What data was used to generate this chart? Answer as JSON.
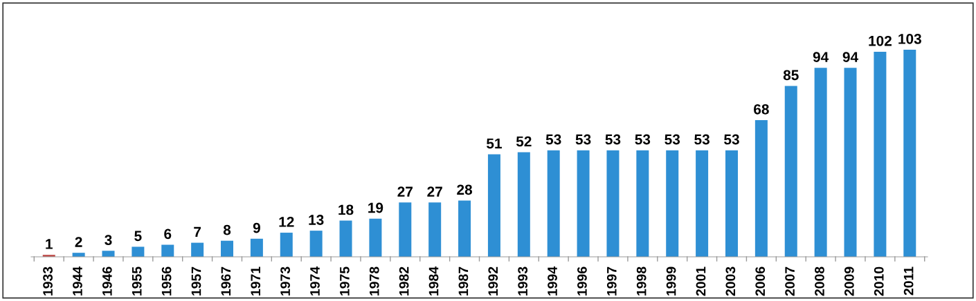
{
  "chart_data": {
    "type": "bar",
    "categories": [
      "1933",
      "1944",
      "1946",
      "1955",
      "1956",
      "1957",
      "1967",
      "1971",
      "1973",
      "1974",
      "1975",
      "1978",
      "1982",
      "1984",
      "1987",
      "1992",
      "1993",
      "1994",
      "1996",
      "1997",
      "1998",
      "1999",
      "2001",
      "2003",
      "2006",
      "2007",
      "2008",
      "2009",
      "2010",
      "2011"
    ],
    "values": [
      1,
      2,
      3,
      5,
      6,
      7,
      8,
      9,
      12,
      13,
      18,
      19,
      27,
      27,
      28,
      51,
      52,
      53,
      53,
      53,
      53,
      53,
      53,
      53,
      68,
      85,
      94,
      94,
      102,
      103
    ],
    "colors": [
      "#c0504d",
      "#2e8fd4",
      "#2e8fd4",
      "#2e8fd4",
      "#2e8fd4",
      "#2e8fd4",
      "#2e8fd4",
      "#2e8fd4",
      "#2e8fd4",
      "#2e8fd4",
      "#2e8fd4",
      "#2e8fd4",
      "#2e8fd4",
      "#2e8fd4",
      "#2e8fd4",
      "#2e8fd4",
      "#2e8fd4",
      "#2e8fd4",
      "#2e8fd4",
      "#2e8fd4",
      "#2e8fd4",
      "#2e8fd4",
      "#2e8fd4",
      "#2e8fd4",
      "#2e8fd4",
      "#2e8fd4",
      "#2e8fd4",
      "#2e8fd4",
      "#2e8fd4",
      "#2e8fd4"
    ],
    "data_labels": true,
    "grid": false,
    "legend": false
  }
}
